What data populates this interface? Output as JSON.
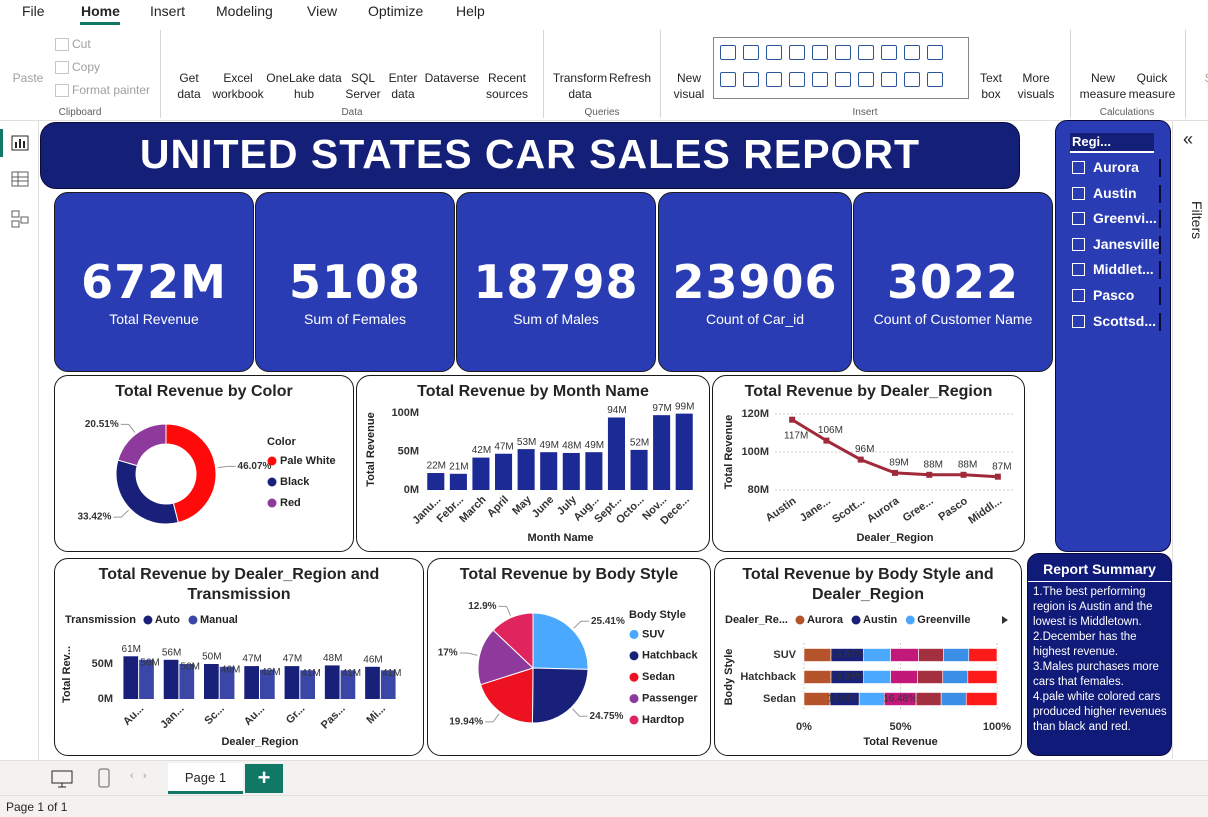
{
  "menu": [
    "File",
    "Home",
    "Insert",
    "Modeling",
    "View",
    "Optimize",
    "Help"
  ],
  "ribbon": {
    "clipboard": {
      "label": "Clipboard",
      "items": [
        "Paste",
        "Cut",
        "Copy",
        "Format painter"
      ]
    },
    "data": {
      "label": "Data",
      "items": [
        "Get\ndata",
        "Excel\nworkbook",
        "OneLake data\nhub",
        "SQL\nServer",
        "Enter\ndata",
        "Dataverse",
        "Recent\nsources"
      ]
    },
    "queries": {
      "label": "Queries",
      "items": [
        "Transform\ndata",
        "Refresh"
      ]
    },
    "insert": {
      "label": "Insert",
      "items": [
        "New\nvisual",
        "Text\nbox",
        "More\nvisuals"
      ]
    },
    "calculations": {
      "label": "Calculations",
      "items": [
        "New\nmeasure",
        "Quick\nmeasure"
      ]
    },
    "cut_off": "Se"
  },
  "report": {
    "title": "UNITED STATES CAR SALES REPORT",
    "kpis": [
      {
        "value": "672M",
        "label": "Total Revenue"
      },
      {
        "value": "5108",
        "label": "Sum of Females"
      },
      {
        "value": "18798",
        "label": "Sum of Males"
      },
      {
        "value": "23906",
        "label": "Count of Car_id"
      },
      {
        "value": "3022",
        "label": "Count of Customer Name"
      }
    ]
  },
  "slicer": {
    "title": "Regi...",
    "items": [
      "Aurora",
      "Austin",
      "Greenvi...",
      "Janesville",
      "Middlet...",
      "Pasco",
      "Scottsd..."
    ]
  },
  "summary": {
    "title": "Report Summary",
    "points": [
      "1.The best performing region is Austin and the lowest is Middletown.",
      "2.December has the highest revenue.",
      "3.Males purchases more cars that females.",
      "4.pale white colored cars produced higher revenues than black and red."
    ]
  },
  "filters_pane": "Filters",
  "pages": [
    "Page 1"
  ],
  "status": "Page 1 of 1",
  "chart_data": [
    {
      "type": "pie",
      "donut": true,
      "title": "Total Revenue by Color",
      "legend_title": "Color",
      "categories": [
        "Pale White",
        "Black",
        "Red"
      ],
      "values": [
        46.07,
        33.42,
        20.51
      ],
      "value_labels": [
        "46.07%",
        "33.42%",
        "20.51%"
      ],
      "colors": [
        "#ff0a0a",
        "#18207a",
        "#8e3a9d"
      ]
    },
    {
      "type": "bar",
      "title": "Total Revenue by Month Name",
      "categories": [
        "Janu...",
        "Febr...",
        "March",
        "April",
        "May",
        "June",
        "July",
        "Aug...",
        "Sept...",
        "Octo...",
        "Nov...",
        "Dece..."
      ],
      "values": [
        22000000,
        21000000,
        42000000,
        47000000,
        53000000,
        49000000,
        48000000,
        49000000,
        94000000,
        52000000,
        97000000,
        99000000
      ],
      "value_labels": [
        "22M",
        "21M",
        "42M",
        "47M",
        "53M",
        "49M",
        "48M",
        "49M",
        "94M",
        "52M",
        "97M",
        "99M"
      ],
      "color": "#1c2a96",
      "ylim": [
        0,
        105000000
      ],
      "yticks": [
        {
          "value": 0,
          "label": "0M"
        },
        {
          "value": 50000000,
          "label": "50M"
        },
        {
          "value": 100000000,
          "label": "100M"
        }
      ],
      "x_label": "Month Name",
      "y_label": "Total Revenue"
    },
    {
      "type": "line",
      "title": "Total Revenue by Dealer_Region",
      "categories": [
        "Austin",
        "Jane...",
        "Scott...",
        "Aurora",
        "Gree...",
        "Pasco",
        "Middl..."
      ],
      "values": [
        117000000,
        106000000,
        96000000,
        89000000,
        88000000,
        88000000,
        87000000
      ],
      "value_labels": [
        "117M",
        "106M",
        "96M",
        "89M",
        "88M",
        "88M",
        "87M"
      ],
      "color": "#a12a3a",
      "ylim": [
        80000000,
        120000000
      ],
      "yticks": [
        {
          "value": 80000000,
          "label": "80M"
        },
        {
          "value": 100000000,
          "label": "100M"
        },
        {
          "value": 120000000,
          "label": "120M"
        }
      ],
      "grid": true,
      "x_label": "Dealer_Region",
      "y_label": "Total Revenue"
    },
    {
      "type": "bar",
      "title": "Total Revenue by Dealer_Region and Transmission",
      "legend_title": "Transmission",
      "categories": [
        "Au...",
        "Jan...",
        "Sc...",
        "Au...",
        "Gr...",
        "Pas...",
        "Mi..."
      ],
      "series": [
        {
          "name": "Auto",
          "color": "#18207a",
          "values": [
            61000000,
            56000000,
            50000000,
            47000000,
            47000000,
            48000000,
            46000000
          ],
          "value_labels": [
            "61M",
            "56M",
            "50M",
            "47M",
            "47M",
            "48M",
            "46M"
          ]
        },
        {
          "name": "Manual",
          "color": "#3b47a6",
          "values": [
            56000000,
            50000000,
            46000000,
            42000000,
            41000000,
            41000000,
            41000000
          ],
          "value_labels": [
            "56M",
            "50M",
            "46M",
            "42M",
            "41M",
            "41M",
            "41M"
          ]
        }
      ],
      "ylim": [
        0,
        70000000
      ],
      "yticks": [
        {
          "value": 0,
          "label": "0M"
        },
        {
          "value": 50000000,
          "label": "50M"
        }
      ],
      "x_label": "Dealer_Region",
      "y_label": "Total Rev..."
    },
    {
      "type": "pie",
      "donut": false,
      "title": "Total Revenue by Body Style",
      "legend_title": "Body Style",
      "categories": [
        "SUV",
        "Hatchback",
        "Sedan",
        "Passenger",
        "Hardtop"
      ],
      "values": [
        25.41,
        24.75,
        19.94,
        17,
        12.9
      ],
      "value_labels": [
        "25.41%",
        "24.75%",
        "19.94%",
        "17%",
        "12.9%"
      ],
      "colors": [
        "#4aa8ff",
        "#18207a",
        "#ee1122",
        "#8e3a9d",
        "#e0245e"
      ]
    },
    {
      "type": "bar",
      "orientation": "horizontal",
      "stacking": "percent",
      "title": "Total Revenue by Body Style and Dealer_Region",
      "legend_title": "Dealer_Re...",
      "categories": [
        "SUV",
        "Hatchback",
        "Sedan"
      ],
      "series": [
        {
          "name": "Aurora",
          "color": "#b5532a",
          "values": [
            14,
            14,
            13.5
          ]
        },
        {
          "name": "Austin",
          "color": "#18207a",
          "values": [
            16.87,
            16.89,
            15.09
          ],
          "value_labels": [
            "16.87%",
            "16.89%",
            "15.09%"
          ]
        },
        {
          "name": "Greenville",
          "color": "#4aa8ff",
          "values": [
            14,
            14,
            13
          ]
        },
        {
          "color": "#c2187a",
          "values": [
            14.5,
            14,
            16.48
          ],
          "value_labels": [
            null,
            null,
            "16.48%"
          ]
        },
        {
          "color": "#a3303f",
          "values": [
            13,
            13,
            13
          ]
        },
        {
          "color": "#3a8ee6",
          "values": [
            13,
            13,
            13
          ]
        },
        {
          "color": "#ff1a1a",
          "values": [
            14.63,
            15.11,
            15.93
          ]
        }
      ],
      "xlim": [
        0,
        100
      ],
      "xticks": [
        {
          "value": 0,
          "label": "0%"
        },
        {
          "value": 50,
          "label": "50%"
        },
        {
          "value": 100,
          "label": "100%"
        }
      ],
      "x_label": "Total Revenue",
      "y_label": "Body Style"
    }
  ]
}
